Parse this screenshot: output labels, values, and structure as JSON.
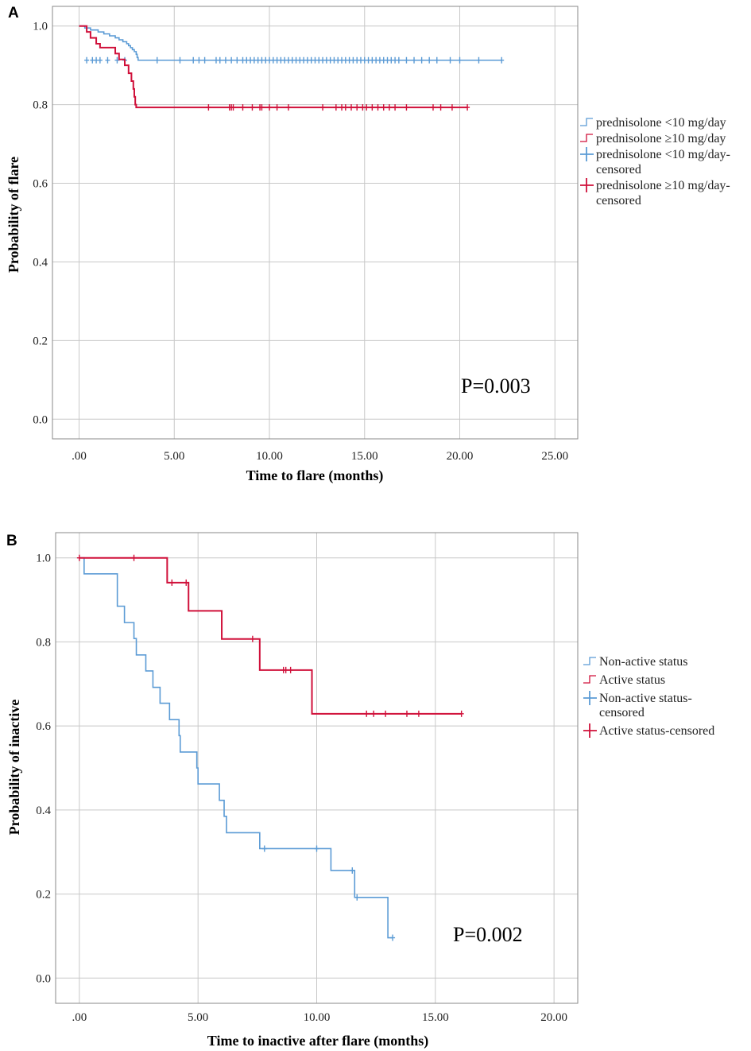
{
  "chart_data": [
    {
      "type": "line",
      "subtype": "kaplan-meier",
      "panel": "A",
      "xlabel": "Time to flare (months)",
      "ylabel": "Probability of flare",
      "xlim": [
        -1.4,
        26.2
      ],
      "ylim": [
        -0.05,
        1.05
      ],
      "xticks": [
        0,
        5,
        10,
        15,
        20,
        25
      ],
      "xtick_labels": [
        ".00",
        "5.00",
        "10.00",
        "15.00",
        "20.00",
        "25.00"
      ],
      "yticks": [
        0,
        0.2,
        0.4,
        0.6,
        0.8,
        1.0
      ],
      "ytick_labels": [
        "0.0",
        "0.2",
        "0.4",
        "0.6",
        "0.8",
        "1.0"
      ],
      "annotation": "P=0.003",
      "legend": [
        {
          "label": "prednisolone <10 mg/day",
          "style": "step",
          "color": "#5b9bd5"
        },
        {
          "label": "prednisolone ≥10 mg/day",
          "style": "step",
          "color": "#d0103a"
        },
        {
          "label": "prednisolone <10 mg/day-",
          "label2": "censored",
          "style": "cross",
          "color": "#5b9bd5"
        },
        {
          "label": "prednisolone ≥10 mg/day-",
          "label2": "censored",
          "style": "cross",
          "color": "#d0103a"
        }
      ],
      "series": [
        {
          "name": "prednisolone <10 mg/day",
          "color": "#5b9bd5",
          "steps": [
            [
              0,
              1.0
            ],
            [
              0.3,
              0.995
            ],
            [
              0.6,
              0.99
            ],
            [
              1.0,
              0.985
            ],
            [
              1.3,
              0.98
            ],
            [
              1.6,
              0.975
            ],
            [
              1.9,
              0.97
            ],
            [
              2.1,
              0.965
            ],
            [
              2.3,
              0.96
            ],
            [
              2.5,
              0.955
            ],
            [
              2.6,
              0.95
            ],
            [
              2.7,
              0.945
            ],
            [
              2.8,
              0.94
            ],
            [
              2.9,
              0.935
            ],
            [
              3.0,
              0.928
            ],
            [
              3.05,
              0.92
            ],
            [
              3.1,
              0.913
            ],
            [
              22.2,
              0.913
            ]
          ],
          "censored": [
            0.4,
            0.7,
            0.9,
            1.1,
            1.5,
            2.0,
            2.4,
            4.1,
            5.3,
            6.0,
            6.3,
            6.6,
            7.2,
            7.4,
            7.7,
            8.0,
            8.3,
            8.6,
            8.8,
            9.0,
            9.2,
            9.4,
            9.6,
            9.8,
            10.0,
            10.2,
            10.4,
            10.6,
            10.8,
            11.0,
            11.2,
            11.4,
            11.6,
            11.8,
            12.0,
            12.2,
            12.4,
            12.6,
            12.8,
            13.0,
            13.2,
            13.4,
            13.6,
            13.8,
            14.0,
            14.2,
            14.4,
            14.6,
            14.8,
            15.0,
            15.2,
            15.4,
            15.6,
            15.8,
            16.0,
            16.2,
            16.4,
            16.6,
            16.8,
            17.2,
            17.6,
            18.0,
            18.4,
            18.8,
            19.5,
            20.0,
            21.0,
            22.2
          ],
          "censored_y": 0.913
        },
        {
          "name": "prednisolone ≥10 mg/day",
          "color": "#d0103a",
          "steps": [
            [
              0,
              1.0
            ],
            [
              0.4,
              0.985
            ],
            [
              0.6,
              0.97
            ],
            [
              0.9,
              0.955
            ],
            [
              1.1,
              0.945
            ],
            [
              1.9,
              0.93
            ],
            [
              2.1,
              0.915
            ],
            [
              2.4,
              0.9
            ],
            [
              2.6,
              0.88
            ],
            [
              2.75,
              0.86
            ],
            [
              2.85,
              0.84
            ],
            [
              2.9,
              0.82
            ],
            [
              2.95,
              0.8
            ],
            [
              3.0,
              0.793
            ],
            [
              20.4,
              0.793
            ]
          ],
          "censored": [
            6.8,
            7.9,
            8.0,
            8.1,
            8.6,
            9.1,
            9.5,
            9.6,
            10.0,
            10.4,
            11.0,
            12.8,
            13.5,
            13.8,
            14.0,
            14.3,
            14.6,
            14.9,
            15.1,
            15.4,
            15.7,
            16.0,
            16.3,
            16.6,
            17.2,
            18.6,
            19.0,
            19.6,
            20.4
          ],
          "censored_y": 0.793
        }
      ]
    },
    {
      "type": "line",
      "subtype": "kaplan-meier",
      "panel": "B",
      "xlabel": "Time to inactive after flare (months)",
      "ylabel": "Probability of inactive",
      "xlim": [
        -1.0,
        21.0
      ],
      "ylim": [
        -0.06,
        1.06
      ],
      "xticks": [
        0,
        5,
        10,
        15,
        20
      ],
      "xtick_labels": [
        ".00",
        "5.00",
        "10.00",
        "15.00",
        "20.00"
      ],
      "yticks": [
        0,
        0.2,
        0.4,
        0.6,
        0.8,
        1.0
      ],
      "ytick_labels": [
        "0.0",
        "0.2",
        "0.4",
        "0.6",
        "0.8",
        "1.0"
      ],
      "annotation": "P=0.002",
      "legend": [
        {
          "label": "Non-active status",
          "style": "step",
          "color": "#5b9bd5"
        },
        {
          "label": "Active status",
          "style": "step",
          "color": "#d0103a"
        },
        {
          "label": "Non-active status-",
          "label2": "censored",
          "style": "cross",
          "color": "#5b9bd5"
        },
        {
          "label": "Active status-censored",
          "style": "cross",
          "color": "#d0103a"
        }
      ],
      "series": [
        {
          "name": "Non-active status",
          "color": "#5b9bd5",
          "steps": [
            [
              0,
              1.0
            ],
            [
              0.2,
              0.962
            ],
            [
              1.6,
              0.885
            ],
            [
              1.9,
              0.846
            ],
            [
              2.3,
              0.808
            ],
            [
              2.4,
              0.769
            ],
            [
              2.8,
              0.731
            ],
            [
              3.1,
              0.692
            ],
            [
              3.4,
              0.654
            ],
            [
              3.8,
              0.615
            ],
            [
              4.2,
              0.577
            ],
            [
              4.25,
              0.538
            ],
            [
              4.95,
              0.5
            ],
            [
              5.0,
              0.462
            ],
            [
              5.9,
              0.423
            ],
            [
              6.1,
              0.385
            ],
            [
              6.2,
              0.346
            ],
            [
              7.6,
              0.308
            ],
            [
              10.6,
              0.256
            ],
            [
              11.6,
              0.192
            ],
            [
              13.0,
              0.096
            ],
            [
              13.2,
              0.096
            ]
          ],
          "censored": [
            [
              7.8,
              0.308
            ],
            [
              10.0,
              0.308
            ],
            [
              11.5,
              0.256
            ],
            [
              11.7,
              0.192
            ],
            [
              13.2,
              0.096
            ]
          ]
        },
        {
          "name": "Active status",
          "color": "#d0103a",
          "steps": [
            [
              0,
              1.0
            ],
            [
              3.7,
              0.941
            ],
            [
              4.6,
              0.874
            ],
            [
              6.0,
              0.807
            ],
            [
              7.6,
              0.733
            ],
            [
              9.8,
              0.629
            ],
            [
              16.1,
              0.629
            ]
          ],
          "censored": [
            [
              0,
              1.0
            ],
            [
              2.3,
              1.0
            ],
            [
              3.9,
              0.941
            ],
            [
              4.5,
              0.941
            ],
            [
              7.3,
              0.807
            ],
            [
              8.6,
              0.733
            ],
            [
              8.7,
              0.733
            ],
            [
              8.9,
              0.733
            ],
            [
              12.1,
              0.629
            ],
            [
              12.4,
              0.629
            ],
            [
              12.9,
              0.629
            ],
            [
              13.8,
              0.629
            ],
            [
              14.3,
              0.629
            ],
            [
              16.1,
              0.629
            ]
          ]
        }
      ]
    }
  ]
}
